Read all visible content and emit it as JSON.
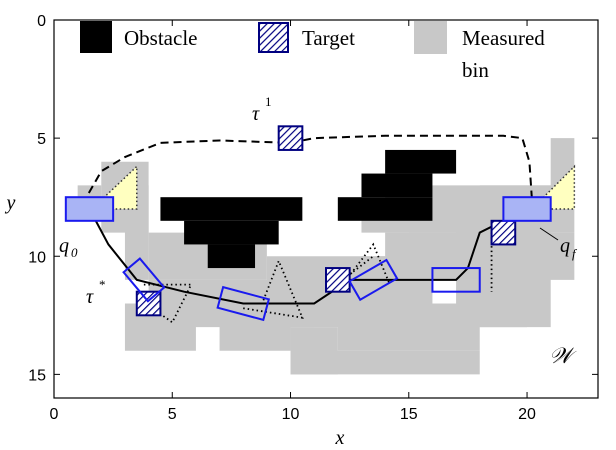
{
  "chart_data": {
    "type": "grid-map",
    "xlabel": "x",
    "ylabel": "y",
    "xlim": [
      0,
      23
    ],
    "ylim": [
      0,
      16
    ],
    "y_axis_inverted": true,
    "xticks": [
      "0",
      "5",
      "10",
      "15",
      "20"
    ],
    "yticks": [
      "0",
      "5",
      "10",
      "15"
    ],
    "legend": {
      "placement": "top",
      "items": [
        {
          "label": "Obstacle",
          "kind": "obstacle"
        },
        {
          "label": "Target",
          "kind": "target"
        },
        {
          "label": "Measured",
          "label2": "bin",
          "kind": "measured"
        }
      ]
    },
    "annotations": {
      "tau1_base": "τ",
      "tau1_sup": "1",
      "taustar_base": "τ",
      "taustar_sup": "*",
      "q0_base": "q",
      "q0_sub": "0",
      "qf_base": "q",
      "qf_sub": "f",
      "workspace": "𝒲"
    },
    "colors": {
      "obstacle": "#000000",
      "measured": "#c8c8c8",
      "target_border": "#000080",
      "sensor_border": "#1a1aee",
      "sensor_fill": "#a9b4f5",
      "fov_fill": "#ffffc0"
    },
    "measured_rects": [
      [
        1,
        7,
        1,
        1
      ],
      [
        2,
        6,
        2,
        3
      ],
      [
        3,
        7,
        1,
        4
      ],
      [
        4,
        9,
        5,
        2
      ],
      [
        4,
        11,
        7,
        2
      ],
      [
        3,
        12,
        3,
        2
      ],
      [
        7,
        12,
        3,
        2
      ],
      [
        9,
        10,
        5,
        3
      ],
      [
        10,
        13,
        2,
        2
      ],
      [
        10,
        14,
        8,
        1
      ],
      [
        12,
        12,
        6,
        2
      ],
      [
        12,
        11,
        4,
        1
      ],
      [
        14,
        9,
        4,
        2
      ],
      [
        13,
        10,
        2,
        1
      ],
      [
        15,
        7,
        7,
        2
      ],
      [
        15,
        8,
        3,
        1
      ],
      [
        18,
        7,
        3,
        3
      ],
      [
        21,
        5,
        1,
        3
      ],
      [
        17,
        9,
        5,
        2
      ],
      [
        17,
        11,
        3,
        2
      ],
      [
        15,
        12,
        3,
        1
      ],
      [
        18,
        10,
        3,
        3
      ],
      [
        13,
        8,
        4,
        1
      ],
      [
        14,
        7,
        2,
        1
      ]
    ],
    "obstacle_rects": [
      [
        4.5,
        7.5,
        6,
        1
      ],
      [
        5.5,
        8.5,
        4,
        1
      ],
      [
        6.5,
        9.5,
        2,
        1
      ],
      [
        12,
        7.5,
        4,
        1
      ],
      [
        13,
        6.5,
        3,
        1
      ],
      [
        14,
        5.5,
        3,
        1
      ]
    ],
    "targets": [
      [
        10,
        5
      ],
      [
        4,
        12
      ],
      [
        12,
        11
      ],
      [
        19,
        9
      ]
    ],
    "tau1_path": [
      [
        1.2,
        7.8
      ],
      [
        2,
        6.4
      ],
      [
        3,
        5.8
      ],
      [
        4.5,
        5.2
      ],
      [
        7,
        5.1
      ],
      [
        10,
        5.2
      ],
      [
        11,
        5
      ],
      [
        14,
        4.9
      ],
      [
        17,
        4.9
      ],
      [
        19,
        4.9
      ],
      [
        19.8,
        5
      ],
      [
        20.1,
        6
      ],
      [
        20.2,
        7.5
      ]
    ],
    "taustar_path": [
      [
        1.5,
        8
      ],
      [
        2.3,
        9.5
      ],
      [
        3.5,
        11
      ],
      [
        5.5,
        11.5
      ],
      [
        8,
        12
      ],
      [
        11,
        12
      ],
      [
        12.5,
        11
      ],
      [
        15,
        11
      ],
      [
        17,
        11
      ],
      [
        17.5,
        10.5
      ],
      [
        18,
        9
      ],
      [
        19,
        8.5
      ],
      [
        20.3,
        8
      ]
    ],
    "dotted_segments": [
      [
        [
          3.8,
          11.2
        ],
        [
          5.8,
          11.2
        ],
        [
          5,
          12.8
        ],
        [
          3.6,
          11.8
        ]
      ],
      [
        [
          8,
          12.2
        ],
        [
          10.5,
          12.6
        ],
        [
          9.5,
          10.2
        ],
        [
          8.8,
          12
        ]
      ],
      [
        [
          12.2,
          11.2
        ],
        [
          13.5,
          9.5
        ],
        [
          14.2,
          11.2
        ]
      ],
      [
        [
          18.5,
          9
        ],
        [
          18.5,
          10.5
        ],
        [
          18.5,
          11.5
        ]
      ],
      [
        [
          12.2,
          11
        ],
        [
          13.5,
          10
        ]
      ]
    ],
    "sensor_boxes": [
      {
        "cx": 1.5,
        "cy": 8,
        "w": 2,
        "h": 1,
        "angle": 0,
        "filled": true
      },
      {
        "cx": 3.8,
        "cy": 11,
        "w": 1.6,
        "h": 0.9,
        "angle": 50,
        "filled": false
      },
      {
        "cx": 8,
        "cy": 12,
        "w": 2,
        "h": 0.9,
        "angle": 15,
        "filled": false
      },
      {
        "cx": 13.5,
        "cy": 11,
        "w": 1.8,
        "h": 0.9,
        "angle": -30,
        "filled": false
      },
      {
        "cx": 17,
        "cy": 11,
        "w": 2,
        "h": 1,
        "angle": 0,
        "filled": false
      },
      {
        "cx": 20,
        "cy": 8,
        "w": 2,
        "h": 1,
        "angle": 0,
        "filled": true
      }
    ],
    "fov_triangles": [
      [
        [
          1.6,
          8
        ],
        [
          3.5,
          6.2
        ],
        [
          3.5,
          8
        ]
      ],
      [
        [
          20.2,
          8
        ],
        [
          22,
          6.2
        ],
        [
          22,
          8
        ]
      ]
    ]
  }
}
